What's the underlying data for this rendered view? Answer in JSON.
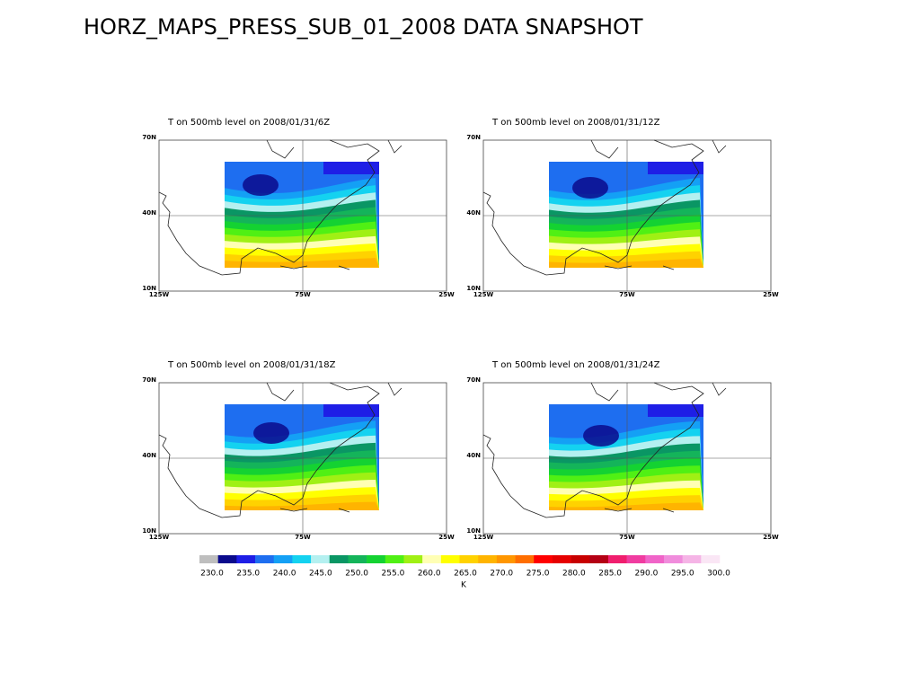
{
  "title": "HORZ_MAPS_PRESS_SUB_01_2008 DATA SNAPSHOT",
  "panels": [
    {
      "title": "T on  500mb level on 2008/01/31/6Z"
    },
    {
      "title": "T on  500mb level on 2008/01/31/12Z"
    },
    {
      "title": "T on  500mb level on 2008/01/31/18Z"
    },
    {
      "title": "T on  500mb level on 2008/01/31/24Z"
    }
  ],
  "lat_labels": [
    "70N",
    "40N",
    "10N"
  ],
  "lon_labels": [
    "125W",
    "75W",
    "25W"
  ],
  "colorbar": {
    "unit": "K",
    "colors": [
      "#bebebe",
      "#0a0a8c",
      "#1e1ee6",
      "#1e6ef0",
      "#14a0f5",
      "#14d2f0",
      "#b4f0f0",
      "#0a9664",
      "#14b45a",
      "#14d232",
      "#50f014",
      "#a0f014",
      "#ffffb4",
      "#ffff00",
      "#ffd200",
      "#ffb400",
      "#ff9600",
      "#ff6e00",
      "#ff0000",
      "#e60000",
      "#c80000",
      "#b40014",
      "#f01e6e",
      "#f03ca0",
      "#f064c8",
      "#f08cdc",
      "#f5b4e6",
      "#fae6f5"
    ],
    "ticks": [
      {
        "value": 230,
        "label": "230.0"
      },
      {
        "value": 235,
        "label": "235.0"
      },
      {
        "value": 240,
        "label": "240.0"
      },
      {
        "value": 245,
        "label": "245.0"
      },
      {
        "value": 250,
        "label": "250.0"
      },
      {
        "value": 255,
        "label": "255.0"
      },
      {
        "value": 260,
        "label": "260.0"
      },
      {
        "value": 265,
        "label": "265.0"
      },
      {
        "value": 270,
        "label": "270.0"
      },
      {
        "value": 275,
        "label": "275.0"
      },
      {
        "value": 280,
        "label": "280.0"
      },
      {
        "value": 285,
        "label": "285.0"
      },
      {
        "value": 290,
        "label": "290.0"
      },
      {
        "value": 295,
        "label": "295.0"
      },
      {
        "value": 300,
        "label": "300.0"
      }
    ]
  }
}
